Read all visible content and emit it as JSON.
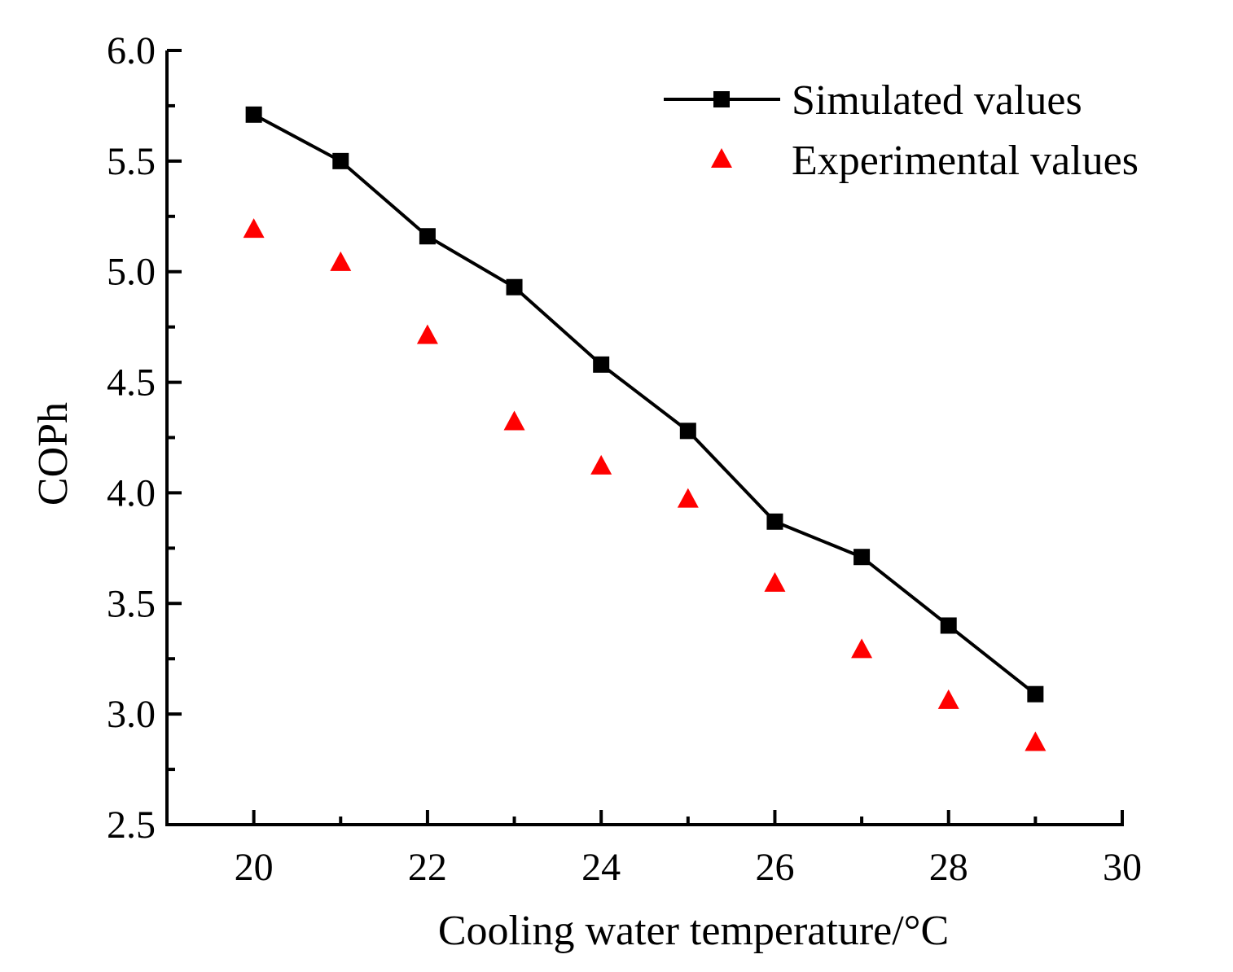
{
  "chart_data": {
    "type": "line",
    "title": "",
    "xlabel": "Cooling water temperature/°C",
    "ylabel": "COPh",
    "xlim": [
      19,
      30
    ],
    "ylim": [
      2.5,
      6.0
    ],
    "xticks": [
      20,
      22,
      24,
      26,
      28,
      30
    ],
    "xtick_labels": [
      "20",
      "22",
      "24",
      "26",
      "28",
      "30"
    ],
    "yticks": [
      2.5,
      3.0,
      3.5,
      4.0,
      4.5,
      5.0,
      5.5,
      6.0
    ],
    "ytick_labels": [
      "2.5",
      "3.0",
      "3.5",
      "4.0",
      "4.5",
      "5.0",
      "5.5",
      "6.0"
    ],
    "x": [
      20,
      21,
      22,
      23,
      24,
      25,
      26,
      27,
      28,
      29
    ],
    "grid": false,
    "legend_position": "top-right",
    "series": [
      {
        "name": "Simulated values",
        "kind": "line-square",
        "color": "#000000",
        "values": [
          5.71,
          5.5,
          5.16,
          4.93,
          4.58,
          4.28,
          3.87,
          3.71,
          3.4,
          3.09
        ]
      },
      {
        "name": "Experimental values",
        "kind": "scatter-triangle",
        "color": "#ff0000",
        "values": [
          5.19,
          5.04,
          4.71,
          4.32,
          4.12,
          3.97,
          3.59,
          3.29,
          3.06,
          2.87
        ]
      }
    ]
  }
}
